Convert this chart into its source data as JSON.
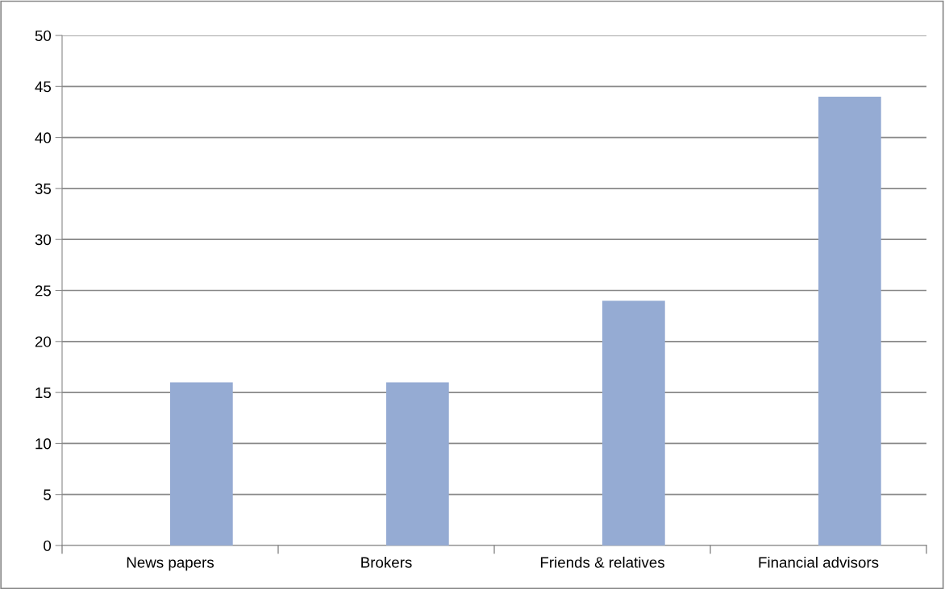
{
  "chart_data": {
    "type": "bar",
    "categories": [
      "News papers",
      "Brokers",
      "Friends & relatives",
      "Financial advisors"
    ],
    "series": [
      {
        "color": "#95abd3",
        "values": [
          16,
          16,
          24,
          44
        ]
      }
    ],
    "ylim": [
      0,
      50
    ],
    "yticks": [
      0,
      5,
      10,
      15,
      20,
      25,
      30,
      35,
      40,
      45,
      50
    ],
    "grid": "y"
  }
}
